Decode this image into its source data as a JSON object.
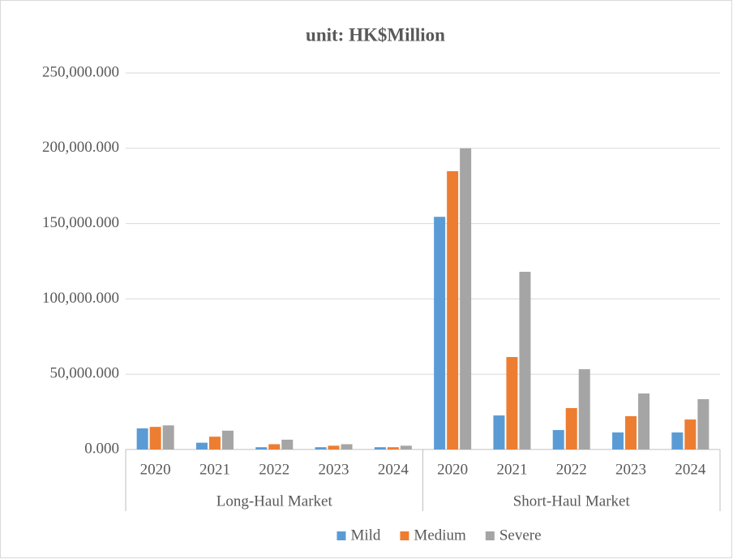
{
  "chart_data": {
    "type": "bar",
    "title": "unit:  HK$Million",
    "categories": [
      "2020",
      "2021",
      "2022",
      "2023",
      "2024",
      "2020",
      "2021",
      "2022",
      "2023",
      "2024"
    ],
    "groups": [
      "Long-Haul Market",
      "Short-Haul Market"
    ],
    "series": [
      {
        "name": "Mild",
        "color": "#5b9bd5",
        "values": [
          14000,
          4500,
          1500,
          1500,
          1500,
          154500,
          22600,
          12900,
          11300,
          11300
        ]
      },
      {
        "name": "Medium",
        "color": "#ed7d31",
        "values": [
          15000,
          8500,
          3500,
          2500,
          1500,
          184800,
          61400,
          27500,
          22100,
          19900
        ]
      },
      {
        "name": "Severe",
        "color": "#a5a5a5",
        "values": [
          16000,
          12500,
          6500,
          3500,
          2500,
          200000,
          118000,
          53300,
          37200,
          33400
        ]
      }
    ],
    "ylim": [
      0,
      250000
    ],
    "yticks": [
      {
        "value": 0,
        "label": "0.000"
      },
      {
        "value": 50000,
        "label": "50,000.000"
      },
      {
        "value": 100000,
        "label": "100,000.000"
      },
      {
        "value": 150000,
        "label": "150,000.000"
      },
      {
        "value": 200000,
        "label": "200,000.000"
      },
      {
        "value": 250000,
        "label": "250,000.000"
      }
    ],
    "grid": true,
    "legend": "bottom"
  }
}
